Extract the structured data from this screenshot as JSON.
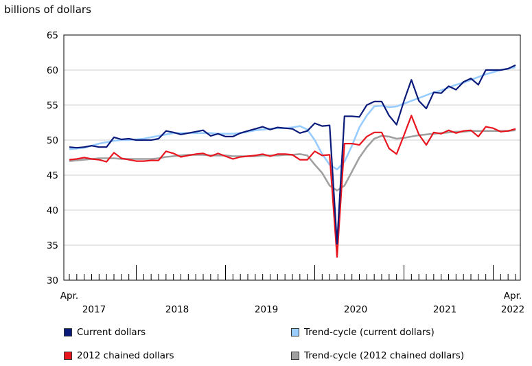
{
  "chart_data": {
    "type": "line",
    "ylabel": "billions of dollars",
    "ylim": [
      30,
      65
    ],
    "y_ticks": [
      30,
      35,
      40,
      45,
      50,
      55,
      60,
      65
    ],
    "x_start_label": "Apr.",
    "x_end_label": "Apr.",
    "x_year_labels": [
      "2017",
      "2018",
      "2019",
      "2020",
      "2021",
      "2022"
    ],
    "x": [
      "Apr. 2017",
      "May 2017",
      "Jun. 2017",
      "Jul. 2017",
      "Aug. 2017",
      "Sep. 2017",
      "Oct. 2017",
      "Nov. 2017",
      "Dec. 2017",
      "Jan. 2018",
      "Feb. 2018",
      "Mar. 2018",
      "Apr. 2018",
      "May 2018",
      "Jun. 2018",
      "Jul. 2018",
      "Aug. 2018",
      "Sep. 2018",
      "Oct. 2018",
      "Nov. 2018",
      "Dec. 2018",
      "Jan. 2019",
      "Feb. 2019",
      "Mar. 2019",
      "Apr. 2019",
      "May 2019",
      "Jun. 2019",
      "Jul. 2019",
      "Aug. 2019",
      "Sep. 2019",
      "Oct. 2019",
      "Nov. 2019",
      "Dec. 2019",
      "Jan. 2020",
      "Feb. 2020",
      "Mar. 2020",
      "Apr. 2020",
      "May 2020",
      "Jun. 2020",
      "Jul. 2020",
      "Aug. 2020",
      "Sep. 2020",
      "Oct. 2020",
      "Nov. 2020",
      "Dec. 2020",
      "Jan. 2021",
      "Feb. 2021",
      "Mar. 2021",
      "Apr. 2021",
      "May 2021",
      "Jun. 2021",
      "Jul. 2021",
      "Aug. 2021",
      "Sep. 2021",
      "Oct. 2021",
      "Nov. 2021",
      "Dec. 2021",
      "Jan. 2022",
      "Feb. 2022",
      "Mar. 2022",
      "Apr. 2022"
    ],
    "series": [
      {
        "name": "Current dollars",
        "color": "#0a1a7a",
        "values": [
          49.0,
          48.9,
          49.0,
          49.2,
          49.0,
          49.0,
          50.4,
          50.1,
          50.2,
          50.0,
          50.0,
          50.0,
          50.2,
          51.3,
          51.1,
          50.8,
          51.0,
          51.2,
          51.4,
          50.6,
          50.9,
          50.5,
          50.5,
          51.0,
          51.3,
          51.6,
          51.9,
          51.5,
          51.8,
          51.7,
          51.6,
          51.0,
          51.3,
          52.4,
          52.0,
          52.1,
          35.2,
          53.4,
          53.4,
          53.3,
          55.0,
          55.5,
          55.5,
          53.5,
          52.2,
          55.6,
          58.6,
          55.6,
          54.5,
          56.8,
          56.7,
          57.7,
          57.2,
          58.3,
          58.8,
          57.9,
          60.0,
          60.0,
          60.0,
          60.2,
          60.7
        ]
      },
      {
        "name": "Trend-cycle (current dollars)",
        "color": "#99ccff",
        "values": [
          48.7,
          48.8,
          48.9,
          49.2,
          49.5,
          49.7,
          49.9,
          50.0,
          50.0,
          50.1,
          50.2,
          50.4,
          50.6,
          50.8,
          51.0,
          51.0,
          51.0,
          51.0,
          51.0,
          51.0,
          50.9,
          50.9,
          50.9,
          51.0,
          51.2,
          51.4,
          51.5,
          51.6,
          51.7,
          51.7,
          51.8,
          52.0,
          51.5,
          50.0,
          48.0,
          46.5,
          45.8,
          46.9,
          49.2,
          51.8,
          53.5,
          54.8,
          54.9,
          54.7,
          54.8,
          55.2,
          55.6,
          56.0,
          56.4,
          56.8,
          57.1,
          57.5,
          57.9,
          58.2,
          58.6,
          59.0,
          59.4,
          59.7,
          60.0,
          60.2,
          60.4
        ]
      },
      {
        "name": "2012 chained dollars",
        "color": "#e8141e",
        "values": [
          47.2,
          47.3,
          47.5,
          47.3,
          47.2,
          46.9,
          48.2,
          47.4,
          47.2,
          47.0,
          47.0,
          47.1,
          47.1,
          48.4,
          48.1,
          47.6,
          47.8,
          48.0,
          48.1,
          47.7,
          48.1,
          47.7,
          47.3,
          47.6,
          47.7,
          47.8,
          48.0,
          47.7,
          48.0,
          48.0,
          47.9,
          47.2,
          47.2,
          48.4,
          47.8,
          47.9,
          33.3,
          49.5,
          49.5,
          49.3,
          50.5,
          51.1,
          51.1,
          48.8,
          48.0,
          50.7,
          53.5,
          50.8,
          49.3,
          51.1,
          50.9,
          51.4,
          51.0,
          51.3,
          51.4,
          50.5,
          51.9,
          51.7,
          51.2,
          51.3,
          51.6
        ]
      },
      {
        "name": "Trend-cycle (2012 chained dollars)",
        "color": "#a0a0a0",
        "values": [
          47.0,
          47.1,
          47.2,
          47.3,
          47.4,
          47.4,
          47.4,
          47.3,
          47.3,
          47.3,
          47.3,
          47.3,
          47.4,
          47.6,
          47.7,
          47.8,
          47.9,
          47.9,
          47.9,
          47.8,
          47.8,
          47.8,
          47.7,
          47.7,
          47.7,
          47.7,
          47.8,
          47.8,
          47.8,
          47.9,
          47.9,
          48.0,
          47.8,
          46.5,
          45.3,
          43.5,
          42.8,
          43.5,
          45.5,
          47.5,
          49.0,
          50.2,
          50.6,
          50.5,
          50.2,
          50.3,
          50.5,
          50.7,
          50.8,
          50.9,
          51.0,
          51.1,
          51.2,
          51.2,
          51.3,
          51.3,
          51.3,
          51.3,
          51.3,
          51.3,
          51.4
        ]
      }
    ]
  }
}
